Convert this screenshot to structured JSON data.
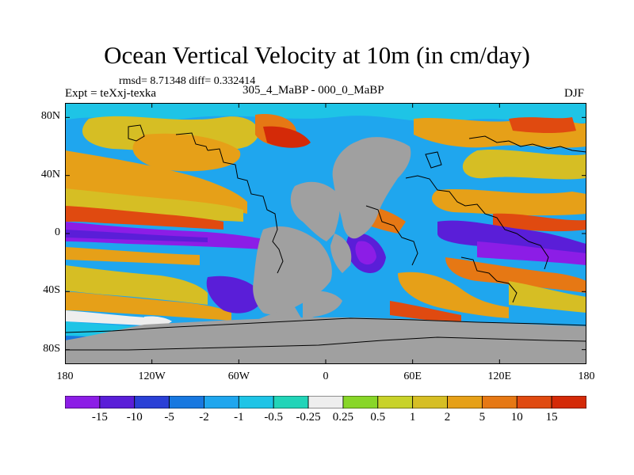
{
  "title": "Ocean Vertical Velocity at 10m (in cm/day)",
  "stats": "rmsd= 8.71348  diff= 0.332414",
  "expt": "Expt = teXxj-texka",
  "experiment_name": "305_4_MaBP - 000_0_MaBP",
  "season": "DJF",
  "map": {
    "land_color": "#a0a0a0",
    "lat_labels": [
      {
        "text": "80N",
        "value": 80
      },
      {
        "text": "40N",
        "value": 40
      },
      {
        "text": "0",
        "value": 0
      },
      {
        "text": "40S",
        "value": -40
      },
      {
        "text": "80S",
        "value": -80
      }
    ],
    "lon_labels": [
      {
        "text": "180",
        "value": -180
      },
      {
        "text": "120W",
        "value": -120
      },
      {
        "text": "60W",
        "value": -60
      },
      {
        "text": "0",
        "value": 0
      },
      {
        "text": "60E",
        "value": 60
      },
      {
        "text": "120E",
        "value": 120
      },
      {
        "text": "180",
        "value": 180
      }
    ]
  },
  "colorbar": {
    "colors": [
      "#8c1de6",
      "#5a1ed8",
      "#2a40d6",
      "#1878e0",
      "#1fa6ee",
      "#1ec4e6",
      "#22d4b8",
      "#eeeeee",
      "#88d628",
      "#c8d22a",
      "#d6be24",
      "#e6a018",
      "#e67814",
      "#e04a10",
      "#d42a08"
    ],
    "labels": [
      "-15",
      "-10",
      "-5",
      "-2",
      "-1",
      "-0.5",
      "-0.25",
      "0.25",
      "0.5",
      "1",
      "2",
      "5",
      "10",
      "15"
    ]
  }
}
